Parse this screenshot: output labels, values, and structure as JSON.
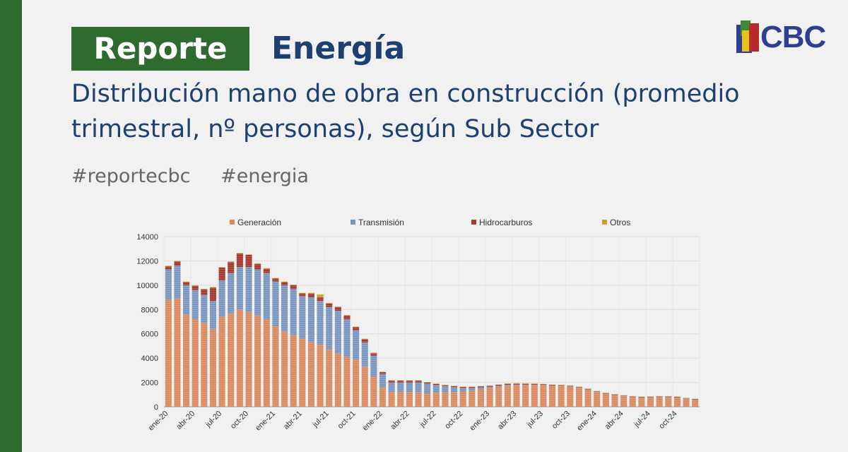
{
  "header": {
    "badge": "Reporte",
    "section": "Energía",
    "subtitle": "Distribución mano de obra en construcción (promedio trimestral, nº personas), según Sub Sector",
    "hashtags": [
      "#reportecbc",
      "#energia"
    ],
    "logo_text": "CBC"
  },
  "colors": {
    "generacion": "#d98a5f",
    "transmision": "#7b96be",
    "hidrocarburos": "#a4392f",
    "otros": "#c9a02c",
    "brand_green": "#2f6a2e",
    "brand_blue": "#1d4070"
  },
  "chart_data": {
    "type": "bar",
    "stacked": true,
    "title": "",
    "xlabel": "",
    "ylabel": "",
    "ylim": [
      0,
      14000
    ],
    "yticks": [
      0,
      2000,
      4000,
      6000,
      8000,
      10000,
      12000,
      14000
    ],
    "grid": true,
    "legend_position": "top",
    "x": [
      "ene-20",
      "feb-20",
      "mar-20",
      "abr-20",
      "may-20",
      "jun-20",
      "jul-20",
      "ago-20",
      "sep-20",
      "oct-20",
      "nov-20",
      "dic-20",
      "ene-21",
      "feb-21",
      "mar-21",
      "abr-21",
      "may-21",
      "jun-21",
      "jul-21",
      "ago-21",
      "sep-21",
      "oct-21",
      "nov-21",
      "dic-21",
      "ene-22",
      "feb-22",
      "mar-22",
      "abr-22",
      "may-22",
      "jun-22",
      "jul-22",
      "ago-22",
      "sep-22",
      "oct-22",
      "nov-22",
      "dic-22",
      "ene-23",
      "feb-23",
      "mar-23",
      "abr-23",
      "may-23",
      "jun-23",
      "jul-23",
      "ago-23",
      "sep-23",
      "oct-23",
      "nov-23",
      "dic-23",
      "ene-24",
      "feb-24",
      "mar-24",
      "abr-24",
      "may-24",
      "jun-24",
      "jul-24",
      "ago-24",
      "sep-24",
      "oct-24",
      "nov-24",
      "dic-24"
    ],
    "x_tick_labels": [
      "ene-20",
      "abr-20",
      "jul-20",
      "oct-20",
      "ene-21",
      "abr-21",
      "jul-21",
      "oct-21",
      "ene-22",
      "abr-22",
      "jul-22",
      "oct-22",
      "ene-23",
      "abr-23",
      "jul-23",
      "oct-23",
      "ene-24",
      "abr-24",
      "jul-24",
      "oct-24"
    ],
    "series": [
      {
        "name": "Generación",
        "values": [
          8800,
          8900,
          7600,
          7200,
          6900,
          6400,
          7400,
          7700,
          8000,
          7800,
          7500,
          7200,
          6600,
          6200,
          5900,
          5600,
          5300,
          5100,
          4700,
          4400,
          4100,
          3900,
          3300,
          2500,
          1600,
          1200,
          1200,
          1200,
          1200,
          1100,
          1150,
          1200,
          1200,
          1250,
          1300,
          1450,
          1550,
          1650,
          1750,
          1780,
          1780,
          1780,
          1760,
          1720,
          1700,
          1650,
          1550,
          1400,
          1200,
          1050,
          950,
          850,
          780,
          750,
          760,
          780,
          780,
          750,
          650,
          580
        ]
      },
      {
        "name": "Transmisión",
        "values": [
          2500,
          2700,
          2400,
          2400,
          2300,
          2300,
          3000,
          3300,
          3500,
          3700,
          3800,
          3800,
          3700,
          3800,
          3800,
          3500,
          3700,
          3600,
          3500,
          3500,
          3100,
          2400,
          2000,
          1700,
          1100,
          800,
          800,
          800,
          800,
          800,
          650,
          500,
          420,
          300,
          250,
          150,
          100,
          80,
          60,
          50,
          40,
          40,
          30,
          30,
          30,
          30,
          30,
          30,
          30,
          30,
          30,
          30,
          30,
          30,
          30,
          30,
          30,
          30,
          30,
          30
        ]
      },
      {
        "name": "Hidrocarburos",
        "values": [
          250,
          350,
          250,
          350,
          450,
          1100,
          1050,
          900,
          1100,
          1000,
          450,
          350,
          250,
          250,
          300,
          220,
          300,
          300,
          300,
          300,
          300,
          250,
          250,
          200,
          150,
          150,
          150,
          150,
          150,
          100,
          80,
          80,
          80,
          80,
          80,
          80,
          80,
          80,
          80,
          80,
          80,
          70,
          60,
          50,
          50,
          50,
          40,
          40,
          40,
          40,
          40,
          40,
          40,
          40,
          40,
          40,
          40,
          40,
          30,
          30
        ]
      },
      {
        "name": "Otros",
        "values": [
          50,
          50,
          50,
          50,
          50,
          50,
          50,
          50,
          50,
          50,
          50,
          50,
          50,
          50,
          50,
          50,
          80,
          250,
          50,
          50,
          50,
          50,
          50,
          50,
          30,
          30,
          30,
          30,
          30,
          30,
          30,
          30,
          30,
          30,
          30,
          30,
          30,
          30,
          30,
          30,
          30,
          30,
          30,
          30,
          30,
          30,
          30,
          30,
          30,
          30,
          30,
          30,
          30,
          30,
          30,
          30,
          30,
          30,
          30,
          30
        ]
      }
    ]
  }
}
